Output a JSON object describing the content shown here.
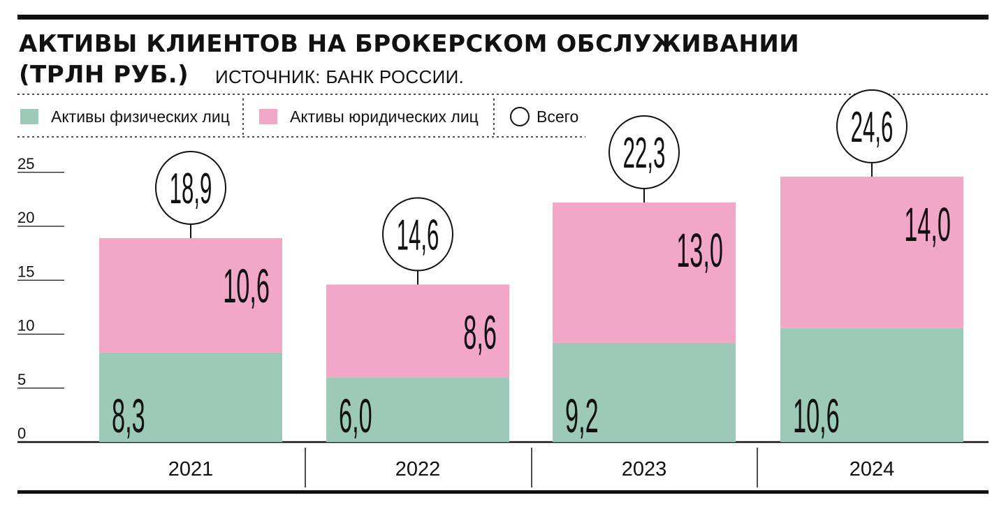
{
  "header": {
    "title_line1": "АКТИВЫ КЛИЕНТОВ НА БРОКЕРСКОМ ОБСЛУЖИВАНИИ",
    "title_line2": "(ТРЛН РУБ.)",
    "source": "ИСТОЧНИК: БАНК РОССИИ."
  },
  "legend": {
    "individuals": "Активы физических лиц",
    "legal_entities": "Активы юридических лиц",
    "total": "Всего"
  },
  "colors": {
    "individuals": "#9dcab8",
    "legal_entities": "#f2a7c6",
    "ink": "#111111"
  },
  "chart_data": {
    "type": "bar",
    "stacked": true,
    "title": "АКТИВЫ КЛИЕНТОВ НА БРОКЕРСКОМ ОБСЛУЖИВАНИИ (ТРЛН РУБ.)",
    "categories": [
      "2021",
      "2022",
      "2023",
      "2024"
    ],
    "series": [
      {
        "name": "Активы физических лиц",
        "values": [
          8.3,
          6.0,
          9.2,
          10.6
        ],
        "labels": [
          "8,3",
          "6,0",
          "9,2",
          "10,6"
        ]
      },
      {
        "name": "Активы юридических лиц",
        "values": [
          10.6,
          8.6,
          13.0,
          14.0
        ],
        "labels": [
          "10,6",
          "8,6",
          "13,0",
          "14,0"
        ]
      }
    ],
    "totals": {
      "name": "Всего",
      "values": [
        18.9,
        14.6,
        22.3,
        24.6
      ],
      "labels": [
        "18,9",
        "14,6",
        "22,3",
        "24,6"
      ]
    },
    "yticks": [
      "0",
      "5",
      "10",
      "15",
      "20",
      "25"
    ],
    "ylim": [
      0,
      25
    ],
    "xlabel": "",
    "ylabel": "",
    "legend_position": "top-left"
  }
}
